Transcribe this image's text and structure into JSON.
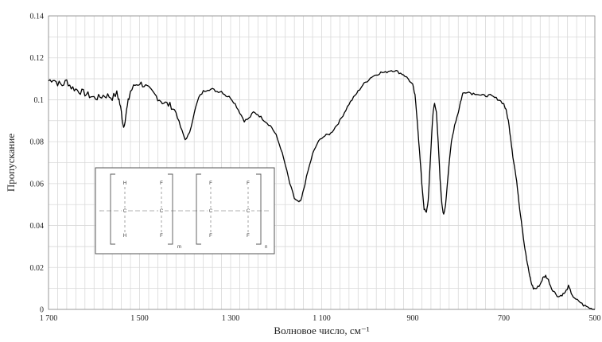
{
  "chart_data": {
    "type": "line",
    "title": "",
    "xlabel": "Волновое число, см⁻¹",
    "ylabel": "Пропускание",
    "xlim": [
      1700,
      500
    ],
    "ylim": [
      0,
      0.14
    ],
    "x_reversed": true,
    "grid": true,
    "x_ticks": [
      1700,
      1500,
      1300,
      1100,
      900,
      700,
      500
    ],
    "x_tick_labels": [
      "1 700",
      "1 500",
      "1 300",
      "1 100",
      "900",
      "700",
      "500"
    ],
    "y_ticks": [
      0,
      0.02,
      0.04,
      0.06,
      0.08,
      0.1,
      0.12,
      0.14
    ],
    "y_tick_labels": [
      "0",
      "0.02",
      "0.04",
      "0.06",
      "0.08",
      "0.1",
      "0.12",
      "0.14"
    ],
    "series": [
      {
        "color": "#000000",
        "points": [
          [
            1700,
            0.109
          ],
          [
            1690,
            0.11
          ],
          [
            1680,
            0.108
          ],
          [
            1670,
            0.107
          ],
          [
            1660,
            0.109
          ],
          [
            1650,
            0.106
          ],
          [
            1640,
            0.105
          ],
          [
            1630,
            0.104
          ],
          [
            1620,
            0.103
          ],
          [
            1610,
            0.102
          ],
          [
            1600,
            0.101
          ],
          [
            1590,
            0.101
          ],
          [
            1580,
            0.102
          ],
          [
            1570,
            0.102
          ],
          [
            1560,
            0.101
          ],
          [
            1550,
            0.103
          ],
          [
            1545,
            0.1
          ],
          [
            1540,
            0.094
          ],
          [
            1535,
            0.087
          ],
          [
            1530,
            0.093
          ],
          [
            1525,
            0.099
          ],
          [
            1520,
            0.104
          ],
          [
            1510,
            0.107
          ],
          [
            1500,
            0.108
          ],
          [
            1490,
            0.107
          ],
          [
            1480,
            0.105
          ],
          [
            1470,
            0.103
          ],
          [
            1460,
            0.101
          ],
          [
            1450,
            0.099
          ],
          [
            1440,
            0.098
          ],
          [
            1430,
            0.097
          ],
          [
            1420,
            0.094
          ],
          [
            1410,
            0.087
          ],
          [
            1400,
            0.081
          ],
          [
            1390,
            0.084
          ],
          [
            1380,
            0.094
          ],
          [
            1370,
            0.101
          ],
          [
            1360,
            0.104
          ],
          [
            1350,
            0.105
          ],
          [
            1340,
            0.105
          ],
          [
            1330,
            0.104
          ],
          [
            1320,
            0.104
          ],
          [
            1310,
            0.102
          ],
          [
            1300,
            0.101
          ],
          [
            1290,
            0.098
          ],
          [
            1280,
            0.094
          ],
          [
            1270,
            0.09
          ],
          [
            1260,
            0.091
          ],
          [
            1250,
            0.094
          ],
          [
            1240,
            0.093
          ],
          [
            1230,
            0.091
          ],
          [
            1220,
            0.089
          ],
          [
            1210,
            0.087
          ],
          [
            1200,
            0.083
          ],
          [
            1190,
            0.077
          ],
          [
            1180,
            0.069
          ],
          [
            1170,
            0.06
          ],
          [
            1160,
            0.053
          ],
          [
            1150,
            0.051
          ],
          [
            1145,
            0.052
          ],
          [
            1140,
            0.057
          ],
          [
            1130,
            0.066
          ],
          [
            1120,
            0.074
          ],
          [
            1110,
            0.079
          ],
          [
            1100,
            0.082
          ],
          [
            1090,
            0.083
          ],
          [
            1080,
            0.084
          ],
          [
            1070,
            0.087
          ],
          [
            1060,
            0.09
          ],
          [
            1050,
            0.094
          ],
          [
            1040,
            0.098
          ],
          [
            1030,
            0.101
          ],
          [
            1020,
            0.104
          ],
          [
            1010,
            0.107
          ],
          [
            1000,
            0.109
          ],
          [
            990,
            0.111
          ],
          [
            980,
            0.112
          ],
          [
            970,
            0.113
          ],
          [
            960,
            0.113
          ],
          [
            950,
            0.114
          ],
          [
            940,
            0.114
          ],
          [
            930,
            0.113
          ],
          [
            920,
            0.112
          ],
          [
            910,
            0.11
          ],
          [
            900,
            0.107
          ],
          [
            895,
            0.102
          ],
          [
            890,
            0.09
          ],
          [
            885,
            0.075
          ],
          [
            880,
            0.06
          ],
          [
            875,
            0.048
          ],
          [
            870,
            0.046
          ],
          [
            866,
            0.052
          ],
          [
            862,
            0.068
          ],
          [
            858,
            0.085
          ],
          [
            855,
            0.095
          ],
          [
            852,
            0.098
          ],
          [
            848,
            0.094
          ],
          [
            844,
            0.08
          ],
          [
            840,
            0.062
          ],
          [
            836,
            0.05
          ],
          [
            832,
            0.045
          ],
          [
            828,
            0.05
          ],
          [
            822,
            0.065
          ],
          [
            815,
            0.08
          ],
          [
            808,
            0.088
          ],
          [
            800,
            0.094
          ],
          [
            795,
            0.099
          ],
          [
            790,
            0.103
          ],
          [
            780,
            0.104
          ],
          [
            770,
            0.103
          ],
          [
            760,
            0.103
          ],
          [
            750,
            0.102
          ],
          [
            740,
            0.102
          ],
          [
            730,
            0.102
          ],
          [
            720,
            0.101
          ],
          [
            710,
            0.1
          ],
          [
            700,
            0.098
          ],
          [
            695,
            0.095
          ],
          [
            690,
            0.09
          ],
          [
            685,
            0.082
          ],
          [
            680,
            0.073
          ],
          [
            675,
            0.066
          ],
          [
            670,
            0.058
          ],
          [
            665,
            0.048
          ],
          [
            660,
            0.04
          ],
          [
            655,
            0.031
          ],
          [
            650,
            0.024
          ],
          [
            645,
            0.018
          ],
          [
            640,
            0.013
          ],
          [
            635,
            0.01
          ],
          [
            628,
            0.01
          ],
          [
            620,
            0.012
          ],
          [
            614,
            0.015
          ],
          [
            608,
            0.016
          ],
          [
            602,
            0.014
          ],
          [
            595,
            0.01
          ],
          [
            588,
            0.008
          ],
          [
            580,
            0.006
          ],
          [
            572,
            0.007
          ],
          [
            565,
            0.008
          ],
          [
            558,
            0.011
          ],
          [
            552,
            0.008
          ],
          [
            545,
            0.005
          ],
          [
            535,
            0.004
          ],
          [
            525,
            0.002
          ],
          [
            515,
            0.001
          ],
          [
            505,
            0.0
          ],
          [
            500,
            0.0
          ]
        ]
      }
    ],
    "inset": {
      "row_top": [
        "H",
        "F",
        "F",
        "F"
      ],
      "row_mid": [
        "C",
        "C",
        "C",
        "C"
      ],
      "row_bot": [
        "H",
        "F",
        "F",
        "F"
      ],
      "subscripts": [
        "m",
        "n"
      ]
    }
  }
}
